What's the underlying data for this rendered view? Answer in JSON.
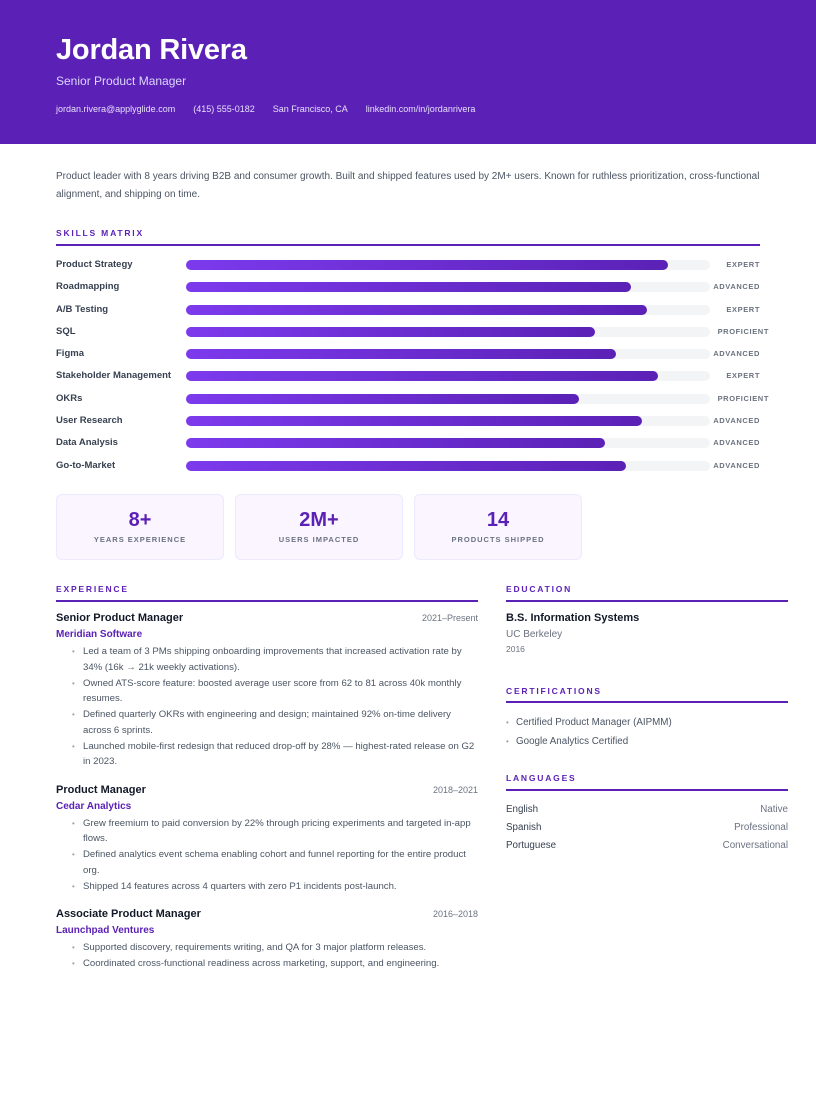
{
  "header": {
    "name": "Jordan Rivera",
    "title": "Senior Product Manager",
    "contacts": {
      "email": "jordan.rivera@applyglide.com",
      "phone": "(415) 555-0182",
      "location": "San Francisco, CA",
      "linkedin": "linkedin.com/in/jordanrivera"
    }
  },
  "summary": "Product leader with 8 years driving B2B and consumer growth. Built and shipped features used by 2M+ users. Known for ruthless prioritization, cross-functional alignment, and shipping on time.",
  "skills": {
    "heading": "SKILLS MATRIX",
    "items": [
      {
        "name": "Product Strategy",
        "level": "EXPERT",
        "percent": 92
      },
      {
        "name": "Roadmapping",
        "level": "ADVANCED",
        "percent": 85
      },
      {
        "name": "A/B Testing",
        "level": "EXPERT",
        "percent": 88
      },
      {
        "name": "SQL",
        "level": "PROFICIENT",
        "percent": 78
      },
      {
        "name": "Figma",
        "level": "ADVANCED",
        "percent": 82
      },
      {
        "name": "Stakeholder Management",
        "level": "EXPERT",
        "percent": 90
      },
      {
        "name": "OKRs",
        "level": "PROFICIENT",
        "percent": 75
      },
      {
        "name": "User Research",
        "level": "ADVANCED",
        "percent": 87
      },
      {
        "name": "Data Analysis",
        "level": "ADVANCED",
        "percent": 80
      },
      {
        "name": "Go-to-Market",
        "level": "ADVANCED",
        "percent": 84
      }
    ]
  },
  "stats": [
    {
      "value": "8+",
      "label": "YEARS EXPERIENCE"
    },
    {
      "value": "2M+",
      "label": "USERS IMPACTED"
    },
    {
      "value": "14",
      "label": "PRODUCTS SHIPPED"
    }
  ],
  "experience": {
    "heading": "EXPERIENCE",
    "jobs": [
      {
        "title": "Senior Product Manager",
        "dates": "2021–Present",
        "company": "Meridian Software",
        "bullets": [
          "Led a team of 3 PMs shipping onboarding improvements that increased activation rate by 34% (16k → 21k weekly activations).",
          "Owned ATS-score feature: boosted average user score from 62 to 81 across 40k monthly resumes.",
          "Defined quarterly OKRs with engineering and design; maintained 92% on-time delivery across 6 sprints.",
          "Launched mobile-first redesign that reduced drop-off by 28% — highest-rated release on G2 in 2023."
        ]
      },
      {
        "title": "Product Manager",
        "dates": "2018–2021",
        "company": "Cedar Analytics",
        "bullets": [
          "Grew freemium to paid conversion by 22% through pricing experiments and targeted in-app flows.",
          "Defined analytics event schema enabling cohort and funnel reporting for the entire product org.",
          "Shipped 14 features across 4 quarters with zero P1 incidents post-launch."
        ]
      },
      {
        "title": "Associate Product Manager",
        "dates": "2016–2018",
        "company": "Launchpad Ventures",
        "bullets": [
          "Supported discovery, requirements writing, and QA for 3 major platform releases.",
          "Coordinated cross-functional readiness across marketing, support, and engineering."
        ]
      }
    ]
  },
  "education": {
    "heading": "EDUCATION",
    "degree": "B.S. Information Systems",
    "school": "UC Berkeley",
    "year": "2016"
  },
  "certifications": {
    "heading": "CERTIFICATIONS",
    "items": [
      "Certified Product Manager (AIPMM)",
      "Google Analytics Certified"
    ]
  },
  "languages": {
    "heading": "LANGUAGES",
    "items": [
      {
        "name": "English",
        "level": "Native"
      },
      {
        "name": "Spanish",
        "level": "Professional"
      },
      {
        "name": "Portuguese",
        "level": "Conversational"
      }
    ]
  },
  "colors": {
    "accent": "#5b21b6",
    "bar_start": "#7c3aed",
    "bar_end": "#5b21b6",
    "track": "#f3f4f6"
  }
}
